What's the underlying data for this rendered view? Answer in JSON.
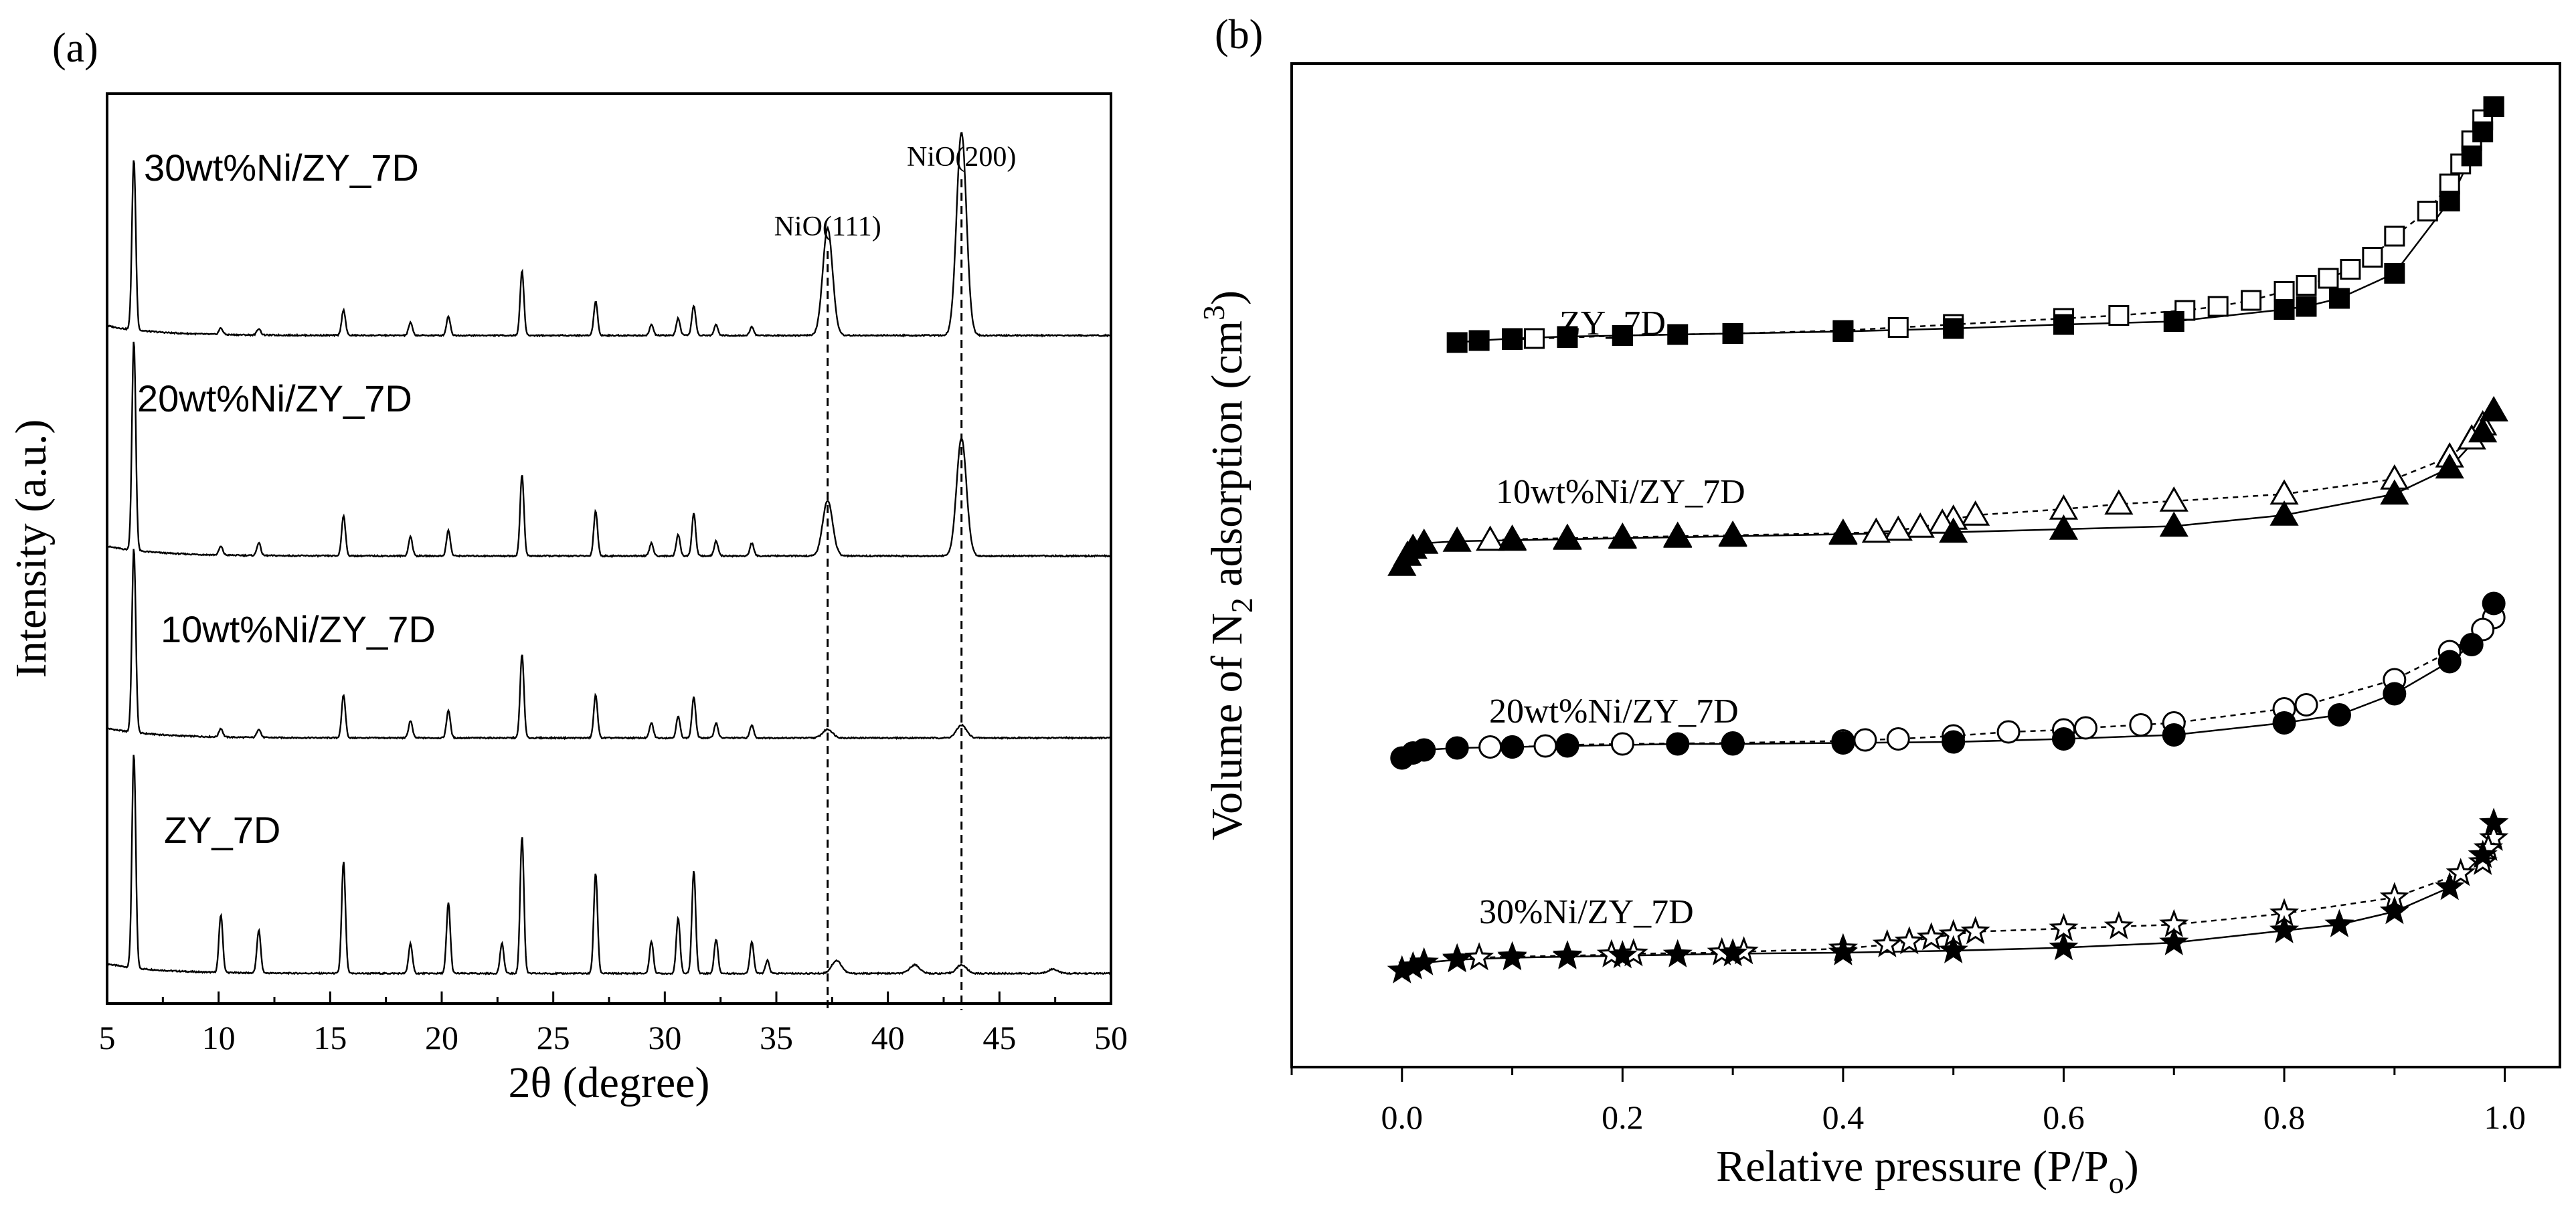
{
  "chart_data": [
    {
      "panel": "(a)",
      "type": "line",
      "title": "",
      "xlabel_prefix": "2",
      "xlabel_symbol": "θ",
      "xlabel_suffix": " (degree)",
      "ylabel": "Intensity (a.u.)",
      "xlim": [
        5,
        50
      ],
      "xticks": [
        5,
        10,
        15,
        20,
        25,
        30,
        35,
        40,
        45,
        50
      ],
      "yticks_shown": false,
      "series": [
        {
          "name": "ZY_7D",
          "offset": 0.0,
          "peaks": [
            [
              6.2,
              1.0
            ],
            [
              10.1,
              0.27
            ],
            [
              11.8,
              0.2
            ],
            [
              15.6,
              0.52
            ],
            [
              18.6,
              0.14
            ],
            [
              20.3,
              0.33
            ],
            [
              22.7,
              0.14
            ],
            [
              23.6,
              0.64
            ],
            [
              26.9,
              0.47
            ],
            [
              29.4,
              0.15
            ],
            [
              30.6,
              0.26
            ],
            [
              31.3,
              0.48
            ],
            [
              32.3,
              0.16
            ],
            [
              33.9,
              0.15
            ],
            [
              34.6,
              0.06
            ],
            [
              37.7,
              0.06
            ],
            [
              41.2,
              0.04
            ],
            [
              43.3,
              0.04
            ],
            [
              47.4,
              0.02
            ]
          ]
        },
        {
          "name": "10wt%Ni/ZY_7D",
          "offset": 1.1,
          "peaks": [
            [
              6.2,
              0.86
            ],
            [
              10.1,
              0.04
            ],
            [
              11.8,
              0.04
            ],
            [
              15.6,
              0.2
            ],
            [
              18.6,
              0.08
            ],
            [
              20.3,
              0.13
            ],
            [
              23.6,
              0.39
            ],
            [
              26.9,
              0.2
            ],
            [
              29.4,
              0.07
            ],
            [
              30.6,
              0.1
            ],
            [
              31.3,
              0.19
            ],
            [
              32.3,
              0.07
            ],
            [
              33.9,
              0.06
            ],
            [
              37.3,
              0.04
            ],
            [
              43.3,
              0.06
            ]
          ]
        },
        {
          "name": "20wt%Ni/ZY_7D",
          "offset": 1.95,
          "peaks": [
            [
              6.2,
              0.98
            ],
            [
              10.1,
              0.04
            ],
            [
              11.8,
              0.06
            ],
            [
              15.6,
              0.19
            ],
            [
              18.6,
              0.09
            ],
            [
              20.3,
              0.12
            ],
            [
              23.6,
              0.38
            ],
            [
              26.9,
              0.21
            ],
            [
              29.4,
              0.06
            ],
            [
              30.6,
              0.1
            ],
            [
              31.3,
              0.2
            ],
            [
              32.3,
              0.07
            ],
            [
              33.9,
              0.06
            ],
            [
              37.3,
              0.26
            ],
            [
              43.3,
              0.55
            ]
          ]
        },
        {
          "name": "30wt%Ni/ZY_7D",
          "offset": 2.98,
          "peaks": [
            [
              6.2,
              0.8
            ],
            [
              10.1,
              0.03
            ],
            [
              11.8,
              0.03
            ],
            [
              15.6,
              0.12
            ],
            [
              18.6,
              0.06
            ],
            [
              20.3,
              0.09
            ],
            [
              23.6,
              0.3
            ],
            [
              26.9,
              0.16
            ],
            [
              29.4,
              0.05
            ],
            [
              30.6,
              0.08
            ],
            [
              31.3,
              0.14
            ],
            [
              32.3,
              0.05
            ],
            [
              33.9,
              0.04
            ],
            [
              37.3,
              0.5
            ],
            [
              43.3,
              0.95
            ]
          ]
        }
      ],
      "annotations": [
        {
          "label": "NiO(111)",
          "x": 37.3
        },
        {
          "label": "NiO(200)",
          "x": 43.3
        }
      ]
    },
    {
      "panel": "(b)",
      "type": "scatter",
      "title": "",
      "xlabel_prefix": "Relative pressure (P/P",
      "xlabel_sub": "o",
      "xlabel_suffix": ")",
      "ylabel_prefix": "Volume of N",
      "ylabel_sub": "2",
      "ylabel_mid": " adsorption (cm",
      "ylabel_sup": "3",
      "ylabel_suffix": ")",
      "xlim": [
        -0.1,
        1.05
      ],
      "xticks": [
        0.0,
        0.2,
        0.4,
        0.6,
        0.8,
        1.0
      ],
      "xticklabels": [
        "0.0",
        "0.2",
        "0.4",
        "0.6",
        "0.8",
        "1.0"
      ],
      "ylim": [
        0,
        10
      ],
      "yticks_shown": false,
      "series": [
        {
          "name": "ZY_7D",
          "marker": "square",
          "adsorption": [
            [
              0.05,
              7.22
            ],
            [
              0.07,
              7.24
            ],
            [
              0.1,
              7.26
            ],
            [
              0.15,
              7.28
            ],
            [
              0.2,
              7.29
            ],
            [
              0.25,
              7.3
            ],
            [
              0.3,
              7.31
            ],
            [
              0.4,
              7.33
            ],
            [
              0.5,
              7.36
            ],
            [
              0.6,
              7.4
            ],
            [
              0.7,
              7.43
            ],
            [
              0.8,
              7.55
            ],
            [
              0.82,
              7.58
            ],
            [
              0.85,
              7.66
            ],
            [
              0.9,
              7.91
            ],
            [
              0.95,
              8.63
            ],
            [
              0.97,
              9.08
            ],
            [
              0.98,
              9.32
            ],
            [
              0.99,
              9.57
            ]
          ],
          "desorption": [
            [
              0.99,
              9.57
            ],
            [
              0.98,
              9.44
            ],
            [
              0.97,
              9.23
            ],
            [
              0.96,
              9.0
            ],
            [
              0.95,
              8.8
            ],
            [
              0.93,
              8.53
            ],
            [
              0.9,
              8.28
            ],
            [
              0.88,
              8.07
            ],
            [
              0.86,
              7.95
            ],
            [
              0.84,
              7.86
            ],
            [
              0.82,
              7.79
            ],
            [
              0.8,
              7.73
            ],
            [
              0.77,
              7.64
            ],
            [
              0.74,
              7.58
            ],
            [
              0.71,
              7.54
            ],
            [
              0.65,
              7.49
            ],
            [
              0.6,
              7.46
            ],
            [
              0.5,
              7.4
            ],
            [
              0.45,
              7.37
            ],
            [
              0.4,
              7.34
            ],
            [
              0.3,
              7.31
            ],
            [
              0.2,
              7.29
            ],
            [
              0.15,
              7.27
            ],
            [
              0.12,
              7.26
            ],
            [
              0.1,
              7.25
            ]
          ]
        },
        {
          "name": "10wt%Ni/ZY_7D",
          "marker": "triangle",
          "adsorption": [
            [
              0.0,
              5.0
            ],
            [
              0.005,
              5.1
            ],
            [
              0.01,
              5.17
            ],
            [
              0.02,
              5.22
            ],
            [
              0.05,
              5.24
            ],
            [
              0.1,
              5.25
            ],
            [
              0.15,
              5.26
            ],
            [
              0.2,
              5.27
            ],
            [
              0.25,
              5.28
            ],
            [
              0.3,
              5.29
            ],
            [
              0.4,
              5.31
            ],
            [
              0.5,
              5.33
            ],
            [
              0.6,
              5.36
            ],
            [
              0.7,
              5.39
            ],
            [
              0.8,
              5.5
            ],
            [
              0.9,
              5.71
            ],
            [
              0.95,
              5.97
            ],
            [
              0.98,
              6.33
            ],
            [
              0.99,
              6.54
            ]
          ],
          "desorption": [
            [
              0.99,
              6.54
            ],
            [
              0.98,
              6.4
            ],
            [
              0.97,
              6.26
            ],
            [
              0.95,
              6.08
            ],
            [
              0.9,
              5.86
            ],
            [
              0.8,
              5.71
            ],
            [
              0.7,
              5.64
            ],
            [
              0.65,
              5.61
            ],
            [
              0.6,
              5.56
            ],
            [
              0.52,
              5.5
            ],
            [
              0.5,
              5.46
            ],
            [
              0.49,
              5.42
            ],
            [
              0.47,
              5.38
            ],
            [
              0.45,
              5.35
            ],
            [
              0.43,
              5.33
            ],
            [
              0.4,
              5.32
            ],
            [
              0.3,
              5.3
            ],
            [
              0.25,
              5.29
            ],
            [
              0.2,
              5.28
            ],
            [
              0.15,
              5.27
            ],
            [
              0.1,
              5.26
            ],
            [
              0.08,
              5.25
            ]
          ]
        },
        {
          "name": "20wt%Ni/ZY_7D",
          "marker": "circle",
          "adsorption": [
            [
              0.0,
              3.08
            ],
            [
              0.01,
              3.13
            ],
            [
              0.02,
              3.16
            ],
            [
              0.05,
              3.18
            ],
            [
              0.1,
              3.19
            ],
            [
              0.15,
              3.2
            ],
            [
              0.25,
              3.22
            ],
            [
              0.3,
              3.22
            ],
            [
              0.4,
              3.23
            ],
            [
              0.5,
              3.24
            ],
            [
              0.6,
              3.27
            ],
            [
              0.7,
              3.31
            ],
            [
              0.8,
              3.43
            ],
            [
              0.85,
              3.51
            ],
            [
              0.9,
              3.72
            ],
            [
              0.95,
              4.04
            ],
            [
              0.97,
              4.21
            ],
            [
              0.99,
              4.62
            ]
          ],
          "desorption": [
            [
              0.99,
              4.48
            ],
            [
              0.98,
              4.36
            ],
            [
              0.95,
              4.14
            ],
            [
              0.9,
              3.86
            ],
            [
              0.82,
              3.61
            ],
            [
              0.8,
              3.57
            ],
            [
              0.7,
              3.43
            ],
            [
              0.67,
              3.41
            ],
            [
              0.62,
              3.38
            ],
            [
              0.6,
              3.36
            ],
            [
              0.55,
              3.34
            ],
            [
              0.5,
              3.3
            ],
            [
              0.45,
              3.27
            ],
            [
              0.42,
              3.26
            ],
            [
              0.4,
              3.25
            ],
            [
              0.3,
              3.23
            ],
            [
              0.2,
              3.22
            ],
            [
              0.15,
              3.21
            ],
            [
              0.13,
              3.2
            ],
            [
              0.1,
              3.19
            ],
            [
              0.08,
              3.19
            ]
          ]
        },
        {
          "name": "30%Ni/ZY_7D",
          "marker": "star",
          "adsorption": [
            [
              0.0,
              0.96
            ],
            [
              0.01,
              1.0
            ],
            [
              0.02,
              1.04
            ],
            [
              0.05,
              1.07
            ],
            [
              0.1,
              1.09
            ],
            [
              0.15,
              1.1
            ],
            [
              0.2,
              1.11
            ],
            [
              0.25,
              1.12
            ],
            [
              0.3,
              1.13
            ],
            [
              0.4,
              1.14
            ],
            [
              0.5,
              1.16
            ],
            [
              0.6,
              1.19
            ],
            [
              0.7,
              1.24
            ],
            [
              0.8,
              1.36
            ],
            [
              0.85,
              1.42
            ],
            [
              0.9,
              1.55
            ],
            [
              0.95,
              1.79
            ],
            [
              0.98,
              2.11
            ],
            [
              0.99,
              2.43
            ]
          ],
          "desorption": [
            [
              0.99,
              2.28
            ],
            [
              0.985,
              2.18
            ],
            [
              0.98,
              2.04
            ],
            [
              0.96,
              1.93
            ],
            [
              0.9,
              1.69
            ],
            [
              0.8,
              1.53
            ],
            [
              0.7,
              1.42
            ],
            [
              0.65,
              1.4
            ],
            [
              0.6,
              1.38
            ],
            [
              0.52,
              1.35
            ],
            [
              0.5,
              1.32
            ],
            [
              0.48,
              1.29
            ],
            [
              0.46,
              1.25
            ],
            [
              0.44,
              1.22
            ],
            [
              0.4,
              1.18
            ],
            [
              0.31,
              1.15
            ],
            [
              0.29,
              1.14
            ],
            [
              0.21,
              1.13
            ],
            [
              0.19,
              1.12
            ],
            [
              0.15,
              1.11
            ],
            [
              0.1,
              1.1
            ],
            [
              0.07,
              1.09
            ],
            [
              0.05,
              1.08
            ]
          ]
        }
      ]
    }
  ]
}
